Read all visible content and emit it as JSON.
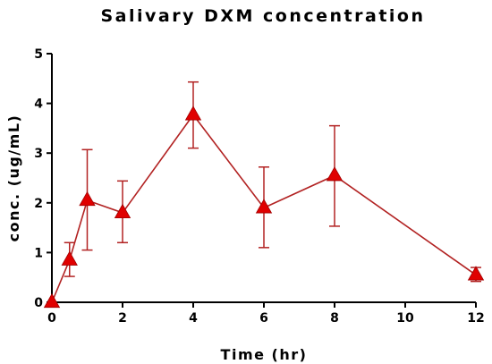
{
  "chart_data": {
    "type": "line",
    "title": "Salivary DXM concentration",
    "xlabel": "Time (hr)",
    "ylabel": "conc. (ug/mL)",
    "xlim": [
      0,
      12
    ],
    "ylim": [
      0,
      5
    ],
    "xticks": [
      0,
      2,
      4,
      6,
      8,
      10,
      12
    ],
    "yticks": [
      0,
      1,
      2,
      3,
      4,
      5
    ],
    "grid": false,
    "marker": "triangle",
    "colors": {
      "line": "#b22222",
      "marker": "#e00000",
      "error_bar": "#b22222",
      "axis": "#000000"
    },
    "series": [
      {
        "x": [
          0,
          0.5,
          1,
          2,
          4,
          6,
          8,
          12
        ],
        "y": [
          0.0,
          0.85,
          2.05,
          1.8,
          3.77,
          1.9,
          2.55,
          0.55
        ],
        "error_low": [
          0.0,
          0.52,
          1.05,
          1.2,
          3.1,
          1.1,
          1.53,
          0.42
        ],
        "error_high": [
          0.0,
          1.2,
          3.07,
          2.44,
          4.43,
          2.72,
          3.55,
          0.7
        ]
      }
    ]
  }
}
